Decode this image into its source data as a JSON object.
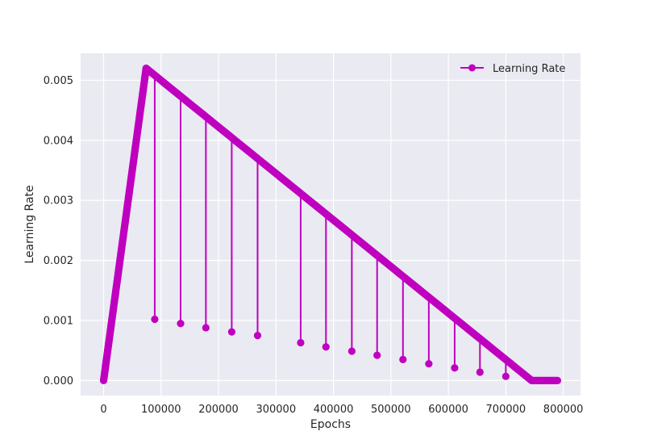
{
  "chart_data": {
    "type": "line",
    "title": "",
    "xlabel": "Epochs",
    "ylabel": "Learning Rate",
    "xlim": [
      -40000,
      830000
    ],
    "ylim": [
      -0.00025,
      0.00545
    ],
    "xticks": [
      0,
      100000,
      200000,
      300000,
      400000,
      500000,
      600000,
      700000,
      800000
    ],
    "xtick_labels": [
      "0",
      "100000",
      "200000",
      "300000",
      "400000",
      "500000",
      "600000",
      "700000",
      "800000"
    ],
    "yticks": [
      0.0,
      0.001,
      0.002,
      0.003,
      0.004,
      0.005
    ],
    "ytick_labels": [
      "0.000",
      "0.001",
      "0.002",
      "0.003",
      "0.004",
      "0.005"
    ],
    "grid": true,
    "legend_position": "top-right",
    "colors": {
      "series": "#bf00bf",
      "plot_bg": "#eaeaf2",
      "grid": "#ffffff"
    },
    "series": [
      {
        "name": "Learning Rate",
        "marker": "circle",
        "schedule": [
          {
            "x": 0,
            "y": 0.0
          },
          {
            "x": 74000,
            "y": 0.0052
          },
          {
            "x": 745000,
            "y": 0.0
          },
          {
            "x": 790000,
            "y": 0.0
          }
        ],
        "restarts": [
          {
            "x": 89000,
            "y": 0.00102
          },
          {
            "x": 134000,
            "y": 0.00095
          },
          {
            "x": 178000,
            "y": 0.00088
          },
          {
            "x": 223000,
            "y": 0.00081
          },
          {
            "x": 268000,
            "y": 0.00075
          },
          {
            "x": 343000,
            "y": 0.00063
          },
          {
            "x": 387000,
            "y": 0.00056
          },
          {
            "x": 432000,
            "y": 0.00049
          },
          {
            "x": 476000,
            "y": 0.00042
          },
          {
            "x": 521000,
            "y": 0.00035
          },
          {
            "x": 566000,
            "y": 0.00028
          },
          {
            "x": 611000,
            "y": 0.00021
          },
          {
            "x": 655000,
            "y": 0.00014
          },
          {
            "x": 700000,
            "y": 7e-05
          }
        ]
      }
    ]
  }
}
